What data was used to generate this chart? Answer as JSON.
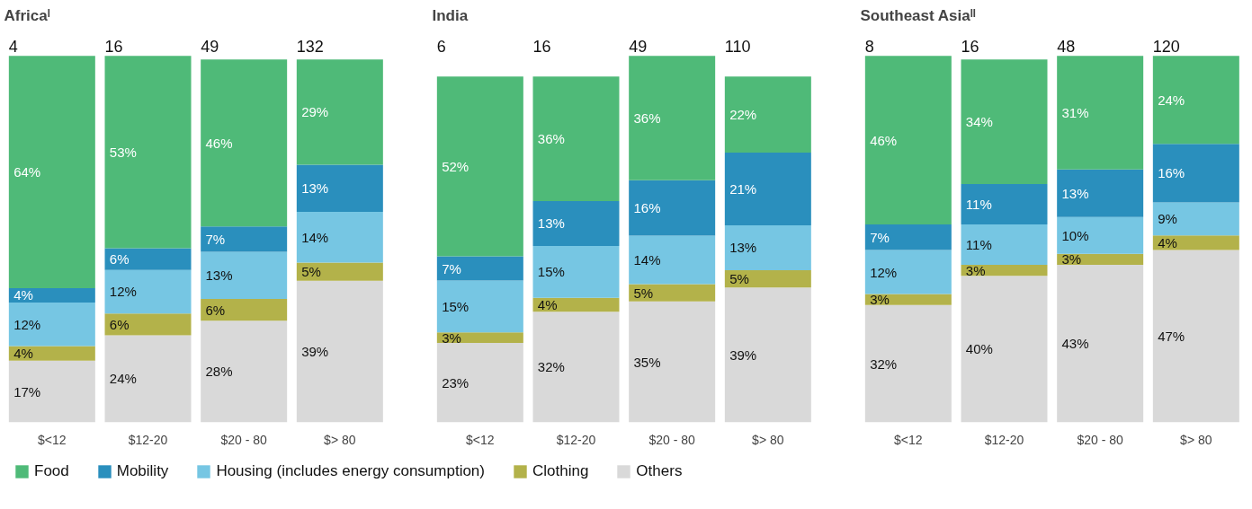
{
  "chart_data": [
    {
      "type": "bar",
      "stacked": true,
      "title": "Africaᴵ",
      "legend": "bottom",
      "categories": [
        "$<12",
        "$12-20",
        "$20 - 80",
        "$> 80"
      ],
      "annotations": [
        "4",
        "16",
        "49",
        "132"
      ],
      "series": [
        {
          "name": "Others",
          "color": "#d9d9d9",
          "values": [
            17,
            24,
            28,
            39
          ],
          "value_labels": [
            "17%",
            "24%",
            "28%",
            "39%"
          ]
        },
        {
          "name": "Clothing",
          "color": "#b3b24a",
          "values": [
            4,
            6,
            6,
            5
          ],
          "value_labels": [
            "4%",
            "6%",
            "6%",
            "5%"
          ]
        },
        {
          "name": "Housing (includes energy consumption)",
          "color": "#76c6e3",
          "values": [
            12,
            12,
            13,
            14
          ],
          "value_labels": [
            "12%",
            "12%",
            "13%",
            "14%"
          ]
        },
        {
          "name": "Mobility",
          "color": "#2a8fbd",
          "values": [
            4,
            6,
            7,
            13
          ],
          "value_labels": [
            "4%",
            "6%",
            "7%",
            "13%"
          ]
        },
        {
          "name": "Food",
          "color": "#4fba78",
          "values": [
            64,
            53,
            46,
            29
          ],
          "value_labels": [
            "64%",
            "53%",
            "46%",
            "29%"
          ]
        }
      ]
    },
    {
      "type": "bar",
      "stacked": true,
      "title": "India",
      "categories": [
        "$<12",
        "$12-20",
        "$20 - 80",
        "$> 80"
      ],
      "annotations": [
        "6",
        "16",
        "49",
        "110"
      ],
      "series": [
        {
          "color": "#d9d9d9",
          "values": [
            23,
            32,
            35,
            39
          ],
          "value_labels": [
            "23%",
            "32%",
            "35%",
            "39%"
          ]
        },
        {
          "color": "#b3b24a",
          "values": [
            3,
            4,
            5,
            5
          ],
          "value_labels": [
            "3%",
            "4%",
            "5%",
            "5%"
          ]
        },
        {
          "color": "#76c6e3",
          "values": [
            15,
            15,
            14,
            13
          ],
          "value_labels": [
            "15%",
            "15%",
            "14%",
            "13%"
          ]
        },
        {
          "color": "#2a8fbd",
          "values": [
            7,
            13,
            16,
            21
          ],
          "value_labels": [
            "7%",
            "13%",
            "16%",
            "21%"
          ]
        },
        {
          "color": "#4fba78",
          "values": [
            52,
            36,
            36,
            22
          ],
          "value_labels": [
            "52%",
            "36%",
            "36%",
            "22%"
          ]
        }
      ]
    },
    {
      "type": "bar",
      "stacked": true,
      "title": "Southeast Asiaᴵᴵ",
      "categories": [
        "$<12",
        "$12-20",
        "$20 - 80",
        "$> 80"
      ],
      "annotations": [
        "8",
        "16",
        "48",
        "120"
      ],
      "series": [
        {
          "color": "#d9d9d9",
          "values": [
            32,
            40,
            43,
            47
          ],
          "value_labels": [
            "32%",
            "40%",
            "43%",
            "47%"
          ]
        },
        {
          "color": "#b3b24a",
          "values": [
            3,
            3,
            3,
            4
          ],
          "value_labels": [
            "3%",
            "3%",
            "3%",
            "4%"
          ]
        },
        {
          "color": "#76c6e3",
          "values": [
            12,
            11,
            10,
            9
          ],
          "value_labels": [
            "12%",
            "11%",
            "10%",
            "9%"
          ]
        },
        {
          "color": "#2a8fbd",
          "values": [
            7,
            11,
            13,
            16
          ],
          "value_labels": [
            "7%",
            "11%",
            "13%",
            "16%"
          ]
        },
        {
          "color": "#4fba78",
          "values": [
            46,
            34,
            31,
            24
          ],
          "value_labels": [
            "46%",
            "34%",
            "31%",
            "24%"
          ]
        }
      ]
    }
  ]
}
